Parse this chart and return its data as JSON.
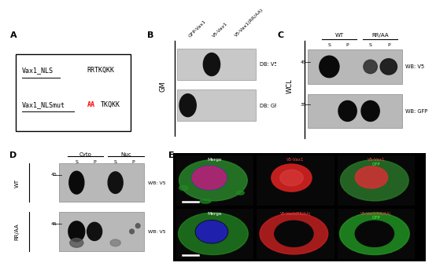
{
  "panel_A": {
    "label": "A",
    "box_text_row1_left": "Vax1_NLS",
    "box_text_row1_right": "RRTKQKK",
    "box_text_row2_left": "Vax1_NLSmut",
    "box_text_row2_right_red": "AA",
    "box_text_row2_right_black": "TKQKK"
  },
  "panel_B": {
    "label": "B",
    "y_label": "GM",
    "col_labels": [
      "GFP-Vax1",
      "V5-Vax1",
      "V5-Vax1(RR/AA)"
    ],
    "row_labels": [
      "DB: V5",
      "DB: GFP"
    ],
    "bg_color": "#c8c8c8",
    "dot_color": "#111111"
  },
  "panel_C": {
    "label": "C",
    "y_label": "WCL",
    "group_labels": [
      "WT",
      "RR/AA"
    ],
    "col_labels": [
      "S",
      "P",
      "S",
      "P"
    ],
    "row_labels": [
      "WB: V5",
      "WB: GFP"
    ],
    "mw_markers": [
      45,
      35
    ],
    "bg_color": "#b8b8b8",
    "band_color": "#111111"
  },
  "panel_D": {
    "label": "D",
    "group_labels_row": [
      "WT",
      "RR/AA"
    ],
    "col_group_labels": [
      "Cyto",
      "Nuc"
    ],
    "col_labels": [
      "S",
      "P",
      "S",
      "P"
    ],
    "mw_marker": 45,
    "bg_color": "#b8b8b8",
    "band_color": "#111111"
  },
  "panel_E": {
    "label": "E"
  },
  "figure_bg": "#ffffff",
  "font_size_text": 6.0,
  "font_size_panel": 8
}
